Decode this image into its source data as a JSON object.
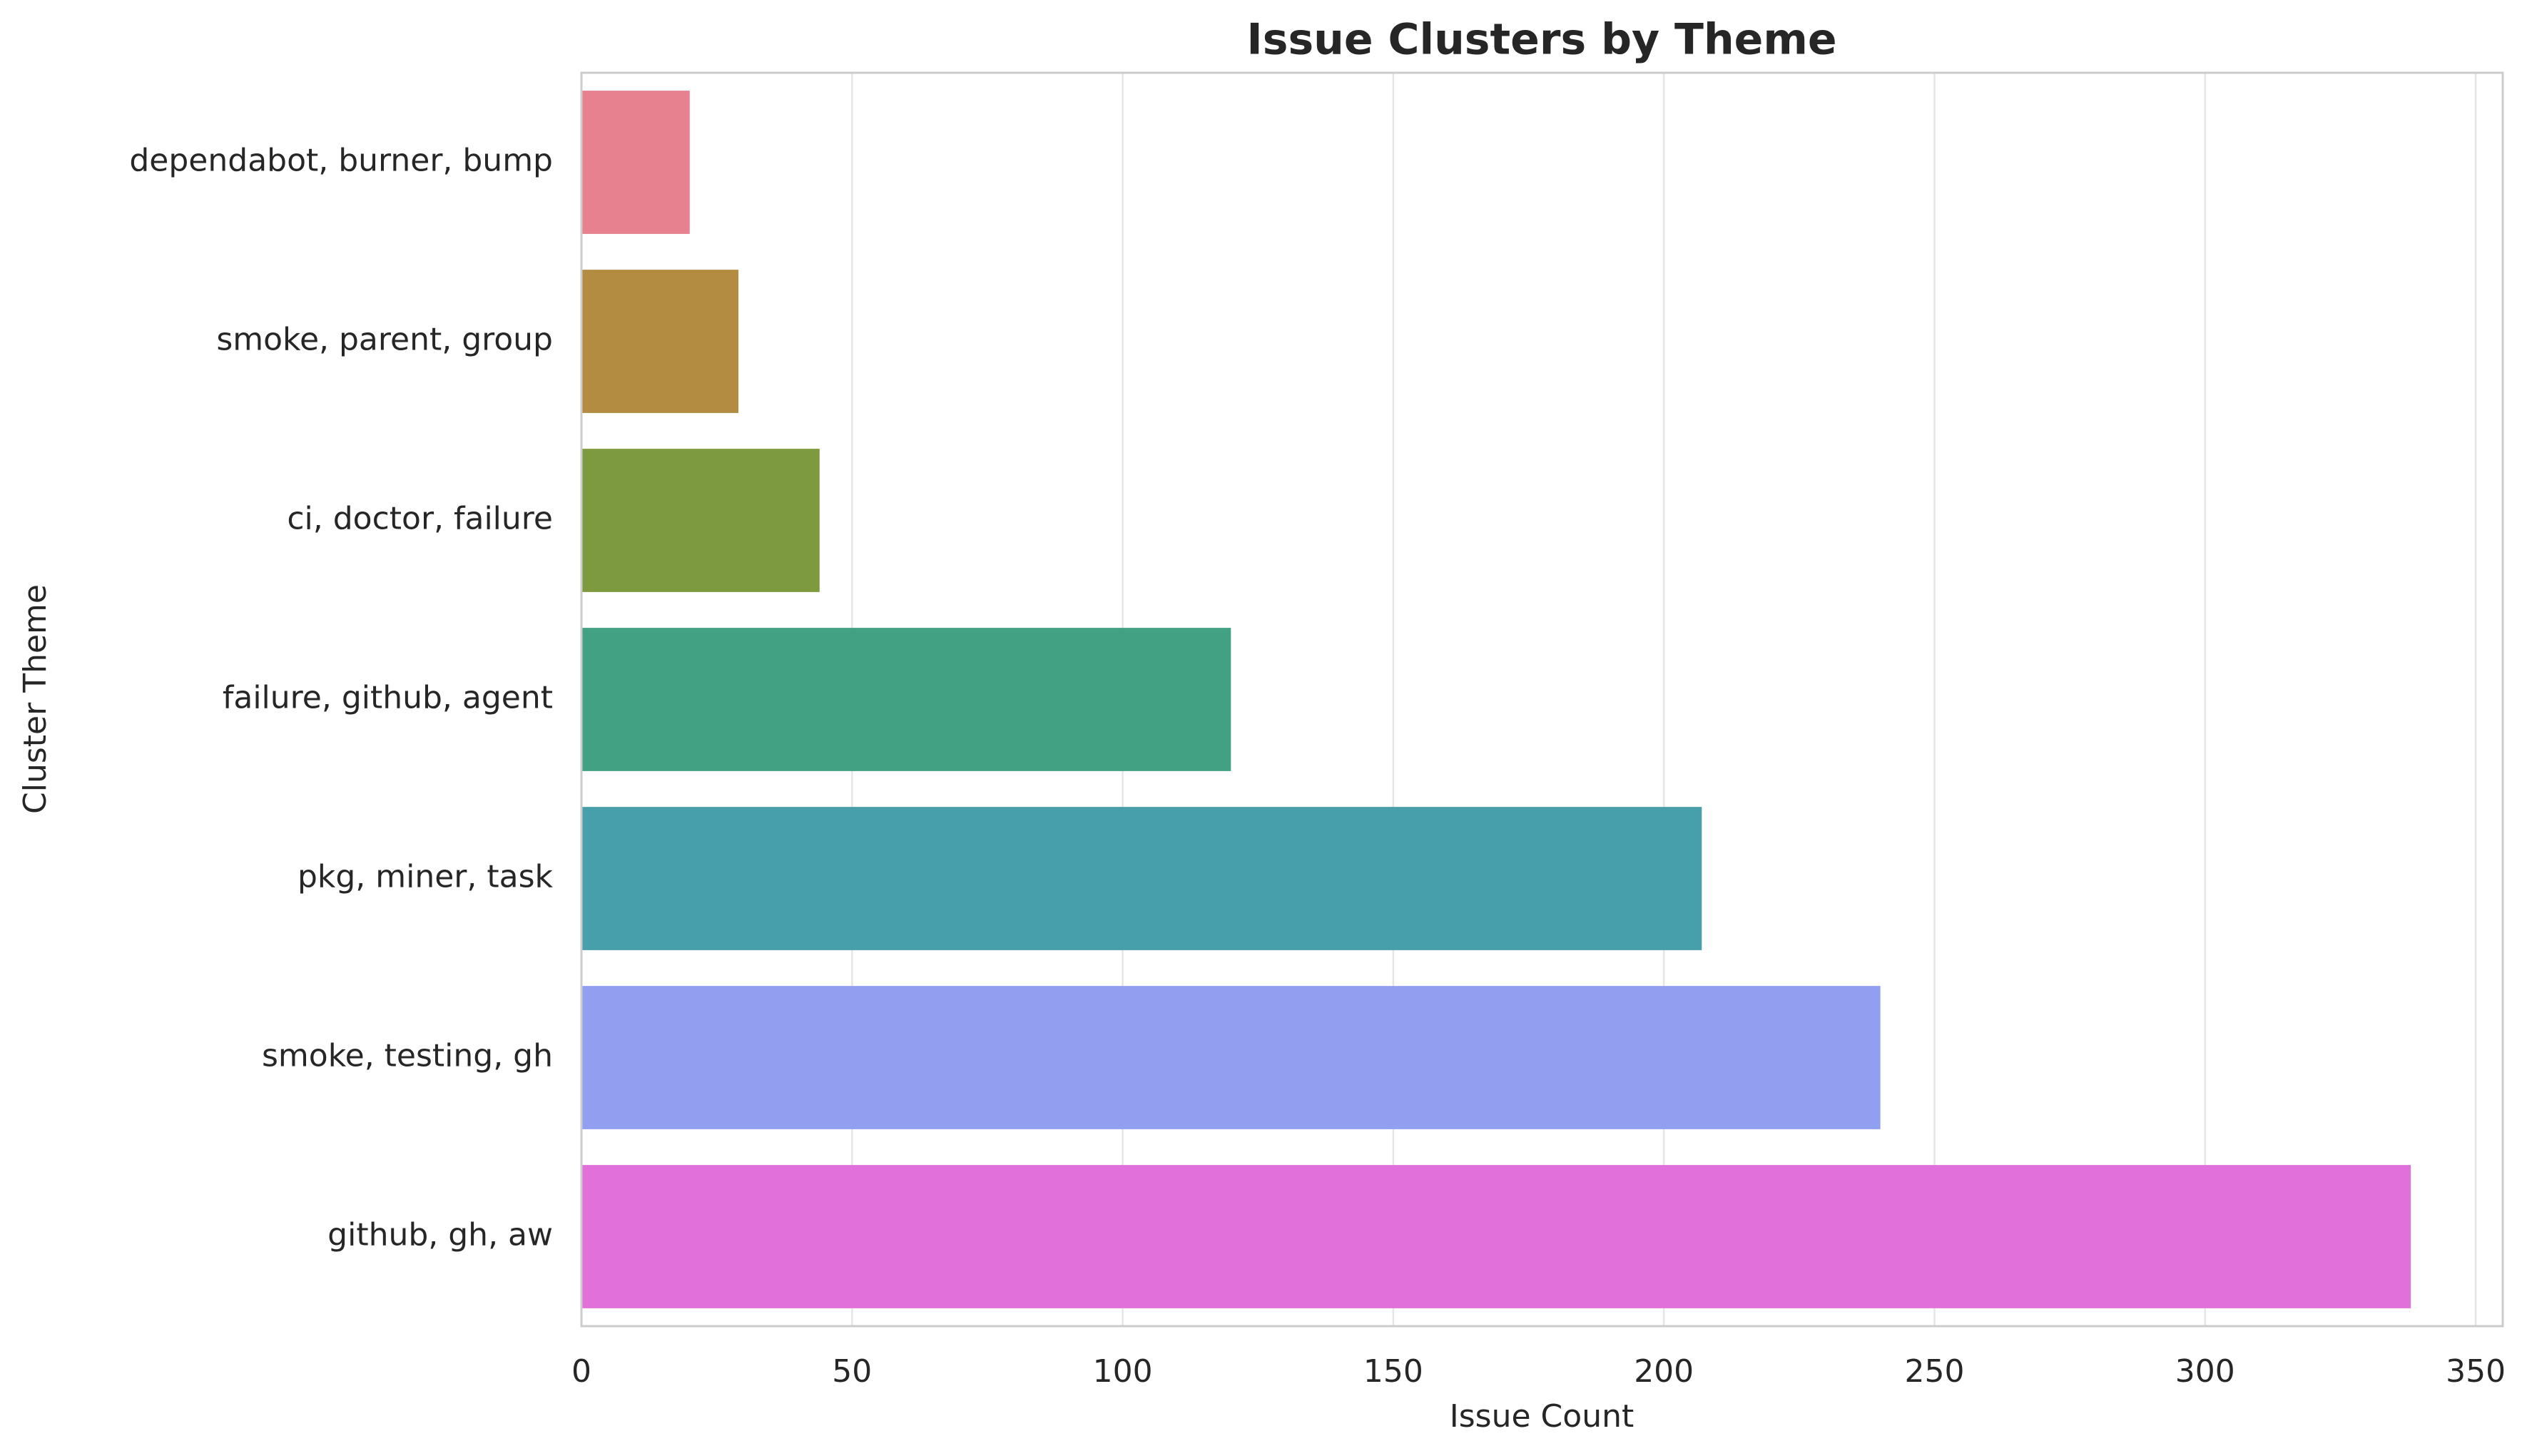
{
  "chart_data": {
    "type": "bar",
    "orientation": "horizontal",
    "title": "Issue Clusters by Theme",
    "x_label": "Issue Count",
    "y_label": "Cluster Theme",
    "categories": [
      "dependabot, burner, bump",
      "smoke, parent, group",
      "ci, doctor, failure",
      "failure, github, agent",
      "pkg, miner, task",
      "smoke, testing, gh",
      "github, gh, aw"
    ],
    "values": [
      20,
      29,
      44,
      120,
      207,
      240,
      338
    ],
    "colors": [
      "#e7808f",
      "#b38c41",
      "#7d9a3e",
      "#42a083",
      "#479fac",
      "#919ff0",
      "#e170da"
    ],
    "xlim": [
      0,
      355
    ],
    "xticks": [
      0,
      50,
      100,
      150,
      200,
      250,
      300,
      350
    ],
    "grid": true
  }
}
